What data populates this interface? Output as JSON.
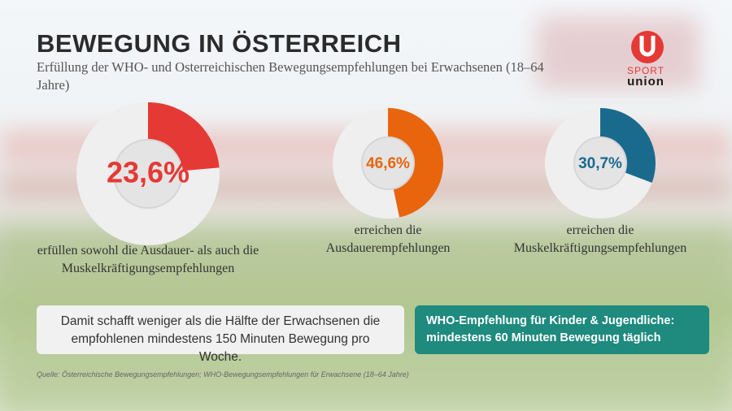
{
  "header": {
    "title": "BEWEGUNG IN ÖSTERREICH",
    "subtitle": "Erfüllung der WHO- und Osterreichischen Bewegungsempfehlungen bei Erwachsenen (18–64 Jahre)"
  },
  "logo": {
    "sport": "SPORT",
    "union": "union"
  },
  "chart_data": [
    {
      "type": "donut",
      "values": [
        23.6
      ],
      "value_labels": [
        "23,6%"
      ],
      "color": "#e53935",
      "ylim": [
        0,
        100
      ],
      "caption": "erfüllen sowohl die Ausdauer- als auch die Muskelkräftigungsempfehlungen"
    },
    {
      "type": "donut",
      "values": [
        46.6
      ],
      "value_labels": [
        "46,6%"
      ],
      "color": "#e8650e",
      "ylim": [
        0,
        100
      ],
      "caption": "erreichen die Ausdauerempfehlungen"
    },
    {
      "type": "donut",
      "values": [
        30.7
      ],
      "value_labels": [
        "30,7%"
      ],
      "color": "#1a6a8e",
      "ylim": [
        0,
        100
      ],
      "caption": "erreichen die Muskelkräftigungsempfehlungen"
    }
  ],
  "notes": {
    "summary": "Damit schafft weniger als die Hälfte der Erwachsenen die empfohlenen mindestens 150 Minuten Bewegung pro Woche.",
    "who_kids": "WHO-Empfehlung für Kinder & Jugendliche: mindestens 60 Minuten Bewegung täglich"
  },
  "source": "Quelle: Österreichische Bewegungsempfehlungen; WHO-Bewegungsempfehlungen für Erwachsene (18–64 Jahre)"
}
